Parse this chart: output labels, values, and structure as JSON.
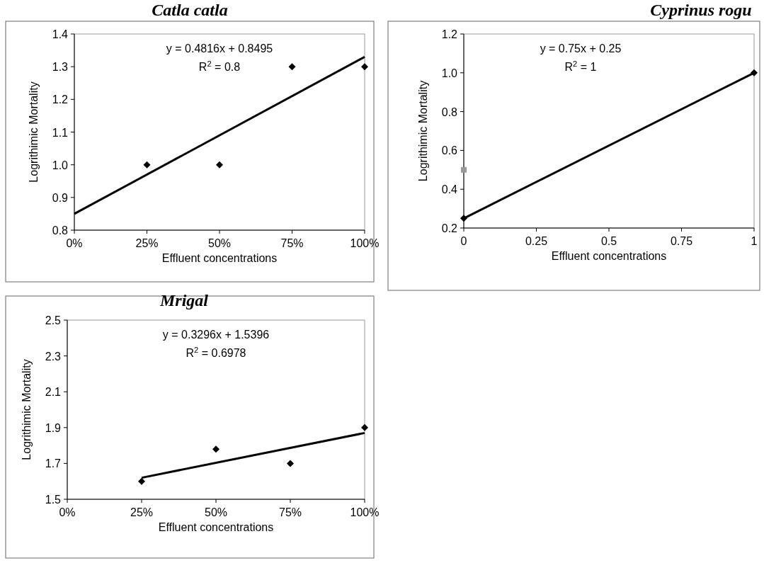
{
  "chart_data": [
    {
      "type": "scatter",
      "title": "Catla catla",
      "xlabel": "Effluent concentrations",
      "ylabel": "Logrithimic Mortality",
      "xlim": [
        0,
        100
      ],
      "xticks": [
        {
          "value": 0,
          "label": "0%"
        },
        {
          "value": 25,
          "label": "25%"
        },
        {
          "value": 50,
          "label": "50%"
        },
        {
          "value": 75,
          "label": "75%"
        },
        {
          "value": 100,
          "label": "100%"
        }
      ],
      "ylim": [
        0.8,
        1.4
      ],
      "yticks": [
        {
          "value": 0.8,
          "label": "0.8"
        },
        {
          "value": 0.9,
          "label": "0.9"
        },
        {
          "value": 1.0,
          "label": "1.0"
        },
        {
          "value": 1.1,
          "label": "1.1"
        },
        {
          "value": 1.2,
          "label": "1.2"
        },
        {
          "value": 1.3,
          "label": "1.3"
        },
        {
          "value": 1.4,
          "label": "1.4"
        }
      ],
      "annotations": [
        "y = 0.4816x + 0.8495",
        "R$^{2}$ = 0.8"
      ],
      "series": [
        {
          "color": "#000000",
          "marker": "diamond",
          "x": [
            25,
            50,
            75,
            100
          ],
          "values": [
            1.0,
            1.0,
            1.3,
            1.3
          ]
        },
        {
          "type": "line",
          "color": "#000000",
          "x": [
            0,
            100
          ],
          "values": [
            0.85,
            1.33
          ]
        }
      ]
    },
    {
      "type": "scatter",
      "title": "Cyprinus rogu",
      "xlabel": "Effluent concentrations",
      "ylabel": "Logrithimic Mortality",
      "xlim": [
        0,
        1
      ],
      "xticks": [
        0,
        0.25,
        0.5,
        0.75,
        1
      ],
      "ylim": [
        0.2,
        1.2
      ],
      "yticks": [
        {
          "value": 0.2,
          "label": "0.2"
        },
        {
          "value": 0.4,
          "label": "0.4"
        },
        {
          "value": 0.6,
          "label": "0.6"
        },
        {
          "value": 0.8,
          "label": "0.8"
        },
        {
          "value": 1.0,
          "label": "1.0"
        },
        {
          "value": 1.2,
          "label": "1.2"
        }
      ],
      "annotations": [
        "y = 0.75x + 0.25",
        "R$^{2}$ = 1"
      ],
      "series": [
        {
          "color": "#000000",
          "marker": "diamond",
          "x": [
            0,
            1
          ],
          "values": [
            0.25,
            1.0
          ]
        },
        {
          "color": "#999999",
          "marker": "square",
          "x": [
            0
          ],
          "values": [
            0.5
          ]
        },
        {
          "type": "line",
          "color": "#000000",
          "x": [
            0,
            1
          ],
          "values": [
            0.25,
            1.0
          ]
        }
      ]
    },
    {
      "type": "scatter",
      "title": "Mrigal",
      "xlabel": "Effluent concentrations",
      "ylabel": "Logrithimic Mortality",
      "xlim": [
        0,
        100
      ],
      "xticks": [
        {
          "value": 0,
          "label": "0%"
        },
        {
          "value": 25,
          "label": "25%"
        },
        {
          "value": 50,
          "label": "50%"
        },
        {
          "value": 75,
          "label": "75%"
        },
        {
          "value": 100,
          "label": "100%"
        }
      ],
      "ylim": [
        1.5,
        2.5
      ],
      "yticks": [
        {
          "value": 1.5,
          "label": "1.5"
        },
        {
          "value": 1.7,
          "label": "1.7"
        },
        {
          "value": 1.9,
          "label": "1.9"
        },
        {
          "value": 2.1,
          "label": "2.1"
        },
        {
          "value": 2.3,
          "label": "2.3"
        },
        {
          "value": 2.5,
          "label": "2.5"
        }
      ],
      "annotations": [
        "y = 0.3296x + 1.5396",
        "R$^{2}$ = 0.6978"
      ],
      "series": [
        {
          "color": "#000000",
          "marker": "diamond",
          "x": [
            25,
            50,
            75,
            100
          ],
          "values": [
            1.6,
            1.78,
            1.7,
            1.9
          ]
        },
        {
          "type": "line",
          "color": "#000000",
          "x": [
            25,
            100
          ],
          "values": [
            1.62,
            1.87
          ]
        }
      ]
    }
  ]
}
